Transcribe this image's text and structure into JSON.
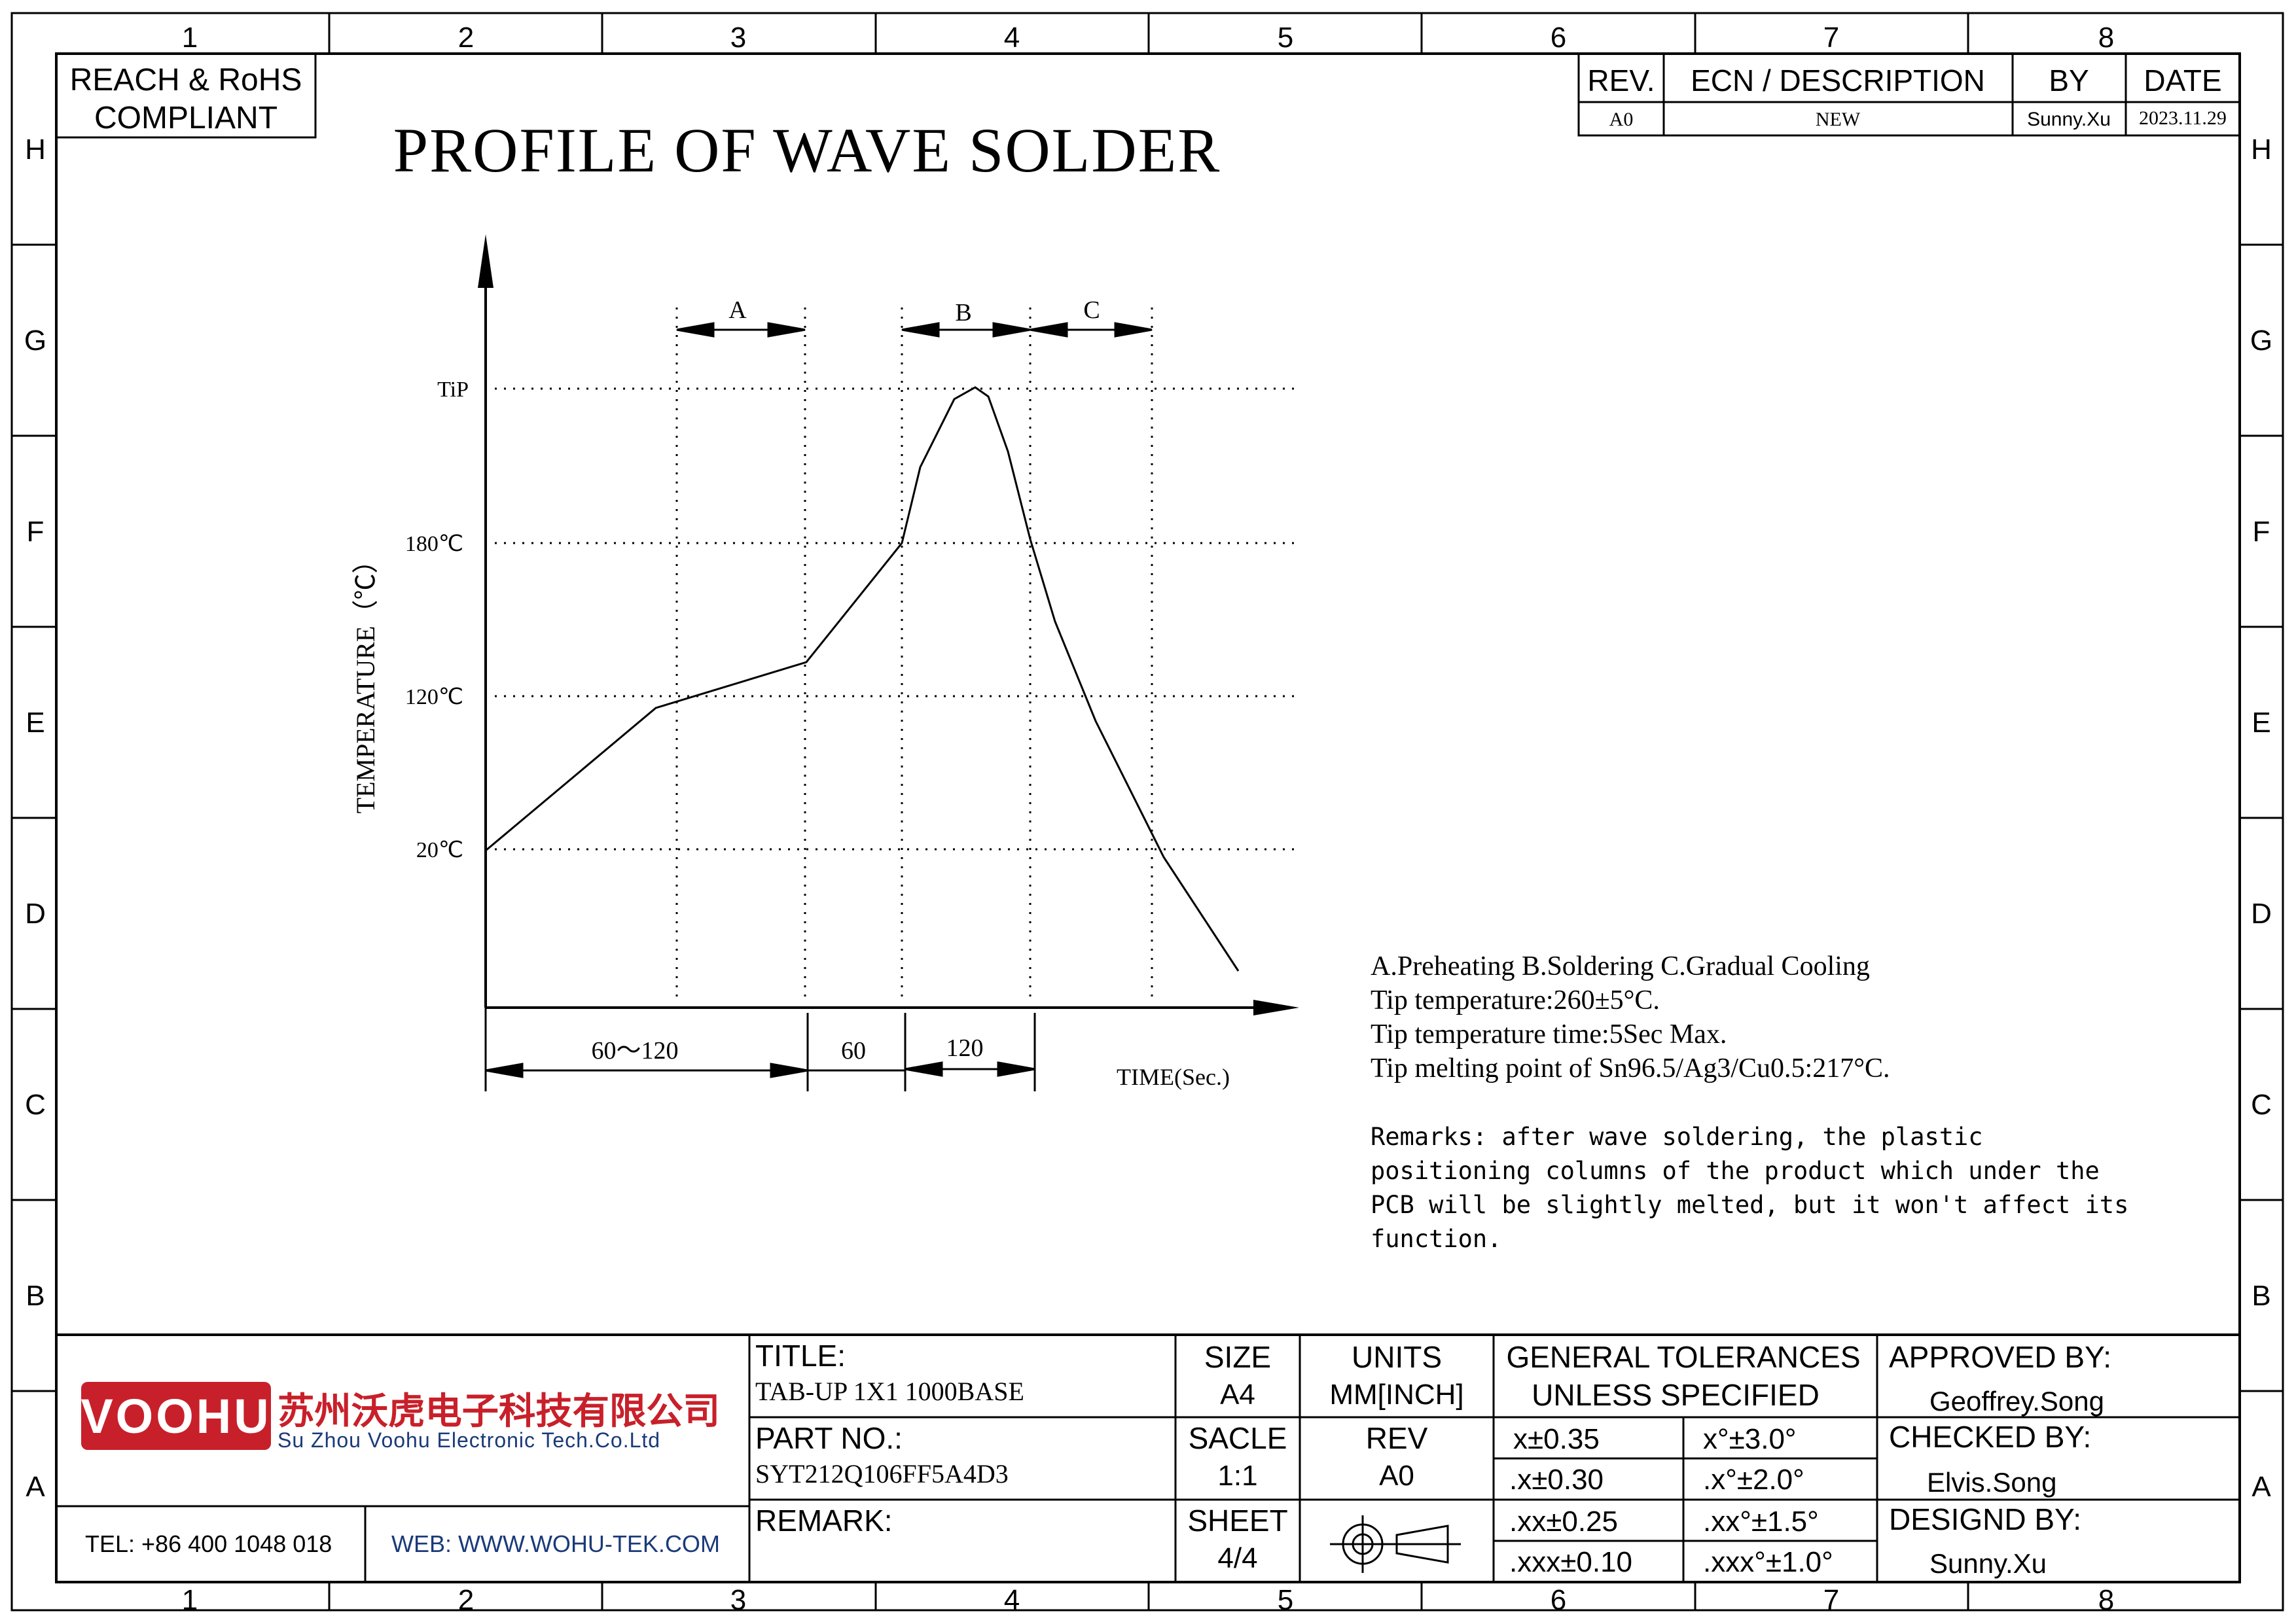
{
  "border": {
    "columns": [
      "1",
      "2",
      "3",
      "4",
      "5",
      "6",
      "7",
      "8"
    ],
    "rows": [
      "H",
      "G",
      "F",
      "E",
      "D",
      "C",
      "B",
      "A"
    ]
  },
  "compliance_box": {
    "line1": "REACH & RoHS",
    "line2": "COMPLIANT"
  },
  "revision_table": {
    "headers": {
      "rev": "REV.",
      "ecn": "ECN / DESCRIPTION",
      "by": "BY",
      "date": "DATE"
    },
    "row": {
      "rev": "A0",
      "ecn": "NEW",
      "by": "Sunny.Xu",
      "date": "2023.11.29"
    }
  },
  "drawing_title": "PROFILE OF WAVE SOLDER",
  "chart_data": {
    "type": "line",
    "ylabel": "TEMPERATURE（℃）",
    "xlabel": "TIME(Sec.)",
    "y_ticks": [
      "TiP",
      "180℃",
      "120℃",
      "20℃"
    ],
    "phase_labels": [
      "A",
      "B",
      "C"
    ],
    "time_segments": [
      "60～120",
      "60",
      "120"
    ]
  },
  "notes": {
    "legend": "A.Preheating  B.Soldering  C.Gradual Cooling",
    "tip_temperature": "Tip temperature:260±5°C.",
    "tip_time": "Tip temperature time:5Sec Max.",
    "melting_point": "Tip melting point of Sn96.5/Ag3/Cu0.5:217°C.",
    "remarks": [
      "Remarks: after wave soldering, the plastic",
      "positioning columns of the product  which under the",
      "PCB will be slightly melted, but it won't affect its",
      "function."
    ]
  },
  "title_block": {
    "company_logo_text": "VOOHU",
    "company_name_cn": "苏州沃虎电子科技有限公司",
    "company_name_en": "Su Zhou Voohu Electronic Tech.Co.Ltd",
    "tel": "TEL: +86 400 1048 018",
    "web": "WEB: WWW.WOHU-TEK.COM",
    "title_label": "TITLE:",
    "title_value": "TAB-UP 1X1 1000BASE",
    "part_no_label": "PART NO.:",
    "part_no_value": "SYT212Q106FF5A4D3",
    "remark_label": "REMARK:",
    "size_label": "SIZE",
    "size_value": "A4",
    "scale_label": "SACLE",
    "scale_value": "1:1",
    "sheet_label": "SHEET",
    "sheet_value": "4/4",
    "units_label": "UNITS",
    "units_value": "MM[INCH]",
    "rev_label": "REV",
    "rev_value": "A0",
    "tolerances_line1": "GENERAL TOLERANCES",
    "tolerances_line2": "UNLESS SPECIFIED",
    "tolerances": [
      [
        "x±0.35",
        "x°±3.0°"
      ],
      [
        ".x±0.30",
        ".x°±2.0°"
      ],
      [
        ".xx±0.25",
        ".xx°±1.5°"
      ],
      [
        ".xxx±0.10",
        ".xxx°±1.0°"
      ]
    ],
    "approved_label": "APPROVED BY:",
    "approved_value": "Geoffrey.Song",
    "checked_label": "CHECKED BY:",
    "checked_value": "Elvis.Song",
    "designed_label": "DESIGND BY:",
    "designed_value": "Sunny.Xu"
  },
  "colors": {
    "line": "#000000",
    "logo_red": "#c8202a",
    "web_blue": "#1a3a7a"
  }
}
